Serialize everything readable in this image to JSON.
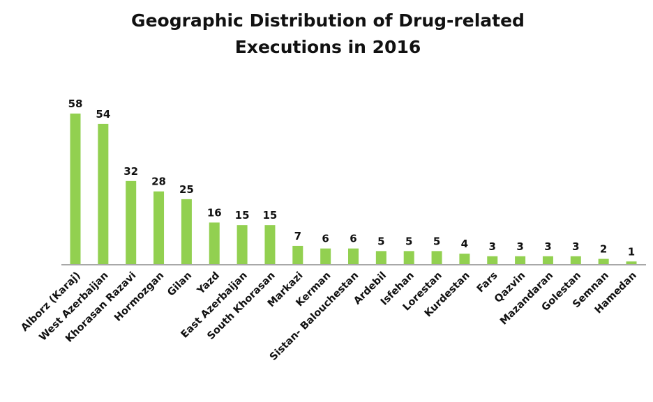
{
  "chart_data": {
    "type": "bar",
    "title": "Geographic Distribution of Drug-related Executions in 2016",
    "title_lines": [
      "Geographic Distribution of Drug-related",
      "Executions in 2016"
    ],
    "xlabel": "",
    "ylabel": "",
    "ylim": [
      0,
      58
    ],
    "grid": false,
    "legend": "none",
    "bar_color": "#92d050",
    "axis_color": "#8c8c8c",
    "categories": [
      "Alborz (Karaj)",
      "West Azerbaijan",
      "Khorasan Razavi",
      "Hormozgan",
      "Gilan",
      "Yazd",
      "East Azerbaijan",
      "South Khorasan",
      "Markazi",
      "Kerman",
      "Sistan- Balouchestan",
      "Ardebil",
      "Isfehan",
      "Lorestan",
      "Kurdestan",
      "Fars",
      "Qazvin",
      "Mazandaran",
      "Golestan",
      "Semnan",
      "Hamedan"
    ],
    "values": [
      58,
      54,
      32,
      28,
      25,
      16,
      15,
      15,
      7,
      6,
      6,
      5,
      5,
      5,
      4,
      3,
      3,
      3,
      3,
      2,
      1
    ]
  }
}
